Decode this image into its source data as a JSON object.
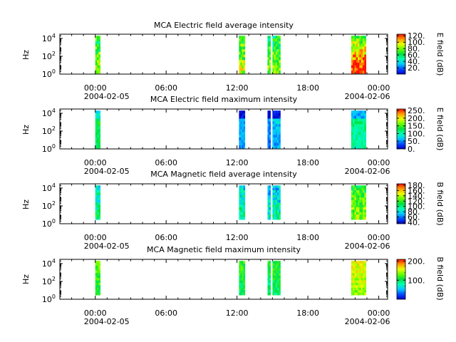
{
  "chart_data": [
    {
      "type": "heatmap",
      "title": "MCA  Electric field average intensity",
      "ylabel": "Hz",
      "colorbar_label": "E field (dB)",
      "colorbar_ticks": [
        "20.",
        "40.",
        "60.",
        "80.",
        "100.",
        "120."
      ],
      "colorbar_range": [
        0,
        125
      ],
      "y_ticks": [
        {
          "exp": "0",
          "value": 1
        },
        {
          "exp": "2",
          "value": 100
        },
        {
          "exp": "4",
          "value": 10000
        }
      ],
      "x_ticks": [
        "00:00",
        "06:00",
        "12:00",
        "18:00",
        "00:00"
      ],
      "x_dates": [
        "2004-02-05",
        "2004-02-06"
      ],
      "x_range": [
        "2004-02-04T21:00",
        "2004-02-06T00:45"
      ],
      "y_range": [
        1,
        30000
      ],
      "y_scale": "log",
      "data_blocks": [
        {
          "start": "00:00",
          "end": "00:25",
          "level": 75
        },
        {
          "start": "12:10",
          "end": "12:40",
          "level": 78
        },
        {
          "start": "14:35",
          "end": "14:50",
          "level": 72
        },
        {
          "start": "15:00",
          "end": "15:40",
          "level": 70
        },
        {
          "start": "21:40",
          "end": "22:55",
          "level": 88
        }
      ]
    },
    {
      "type": "heatmap",
      "title": "MCA  Electric field maximum intensity",
      "ylabel": "Hz",
      "colorbar_label": "E field (dB)",
      "colorbar_ticks": [
        "0.",
        "50.",
        "100.",
        "150.",
        "200.",
        "250."
      ],
      "colorbar_range": [
        0,
        260
      ],
      "y_ticks": [
        {
          "exp": "0",
          "value": 1
        },
        {
          "exp": "2",
          "value": 100
        },
        {
          "exp": "4",
          "value": 10000
        }
      ],
      "x_ticks": [
        "00:00",
        "06:00",
        "12:00",
        "18:00",
        "00:00"
      ],
      "x_dates": [
        "2004-02-05",
        "2004-02-06"
      ],
      "x_range": [
        "2004-02-04T21:00",
        "2004-02-06T00:45"
      ],
      "y_range": [
        1,
        30000
      ],
      "y_scale": "log",
      "data_blocks": [
        {
          "start": "00:00",
          "end": "00:25",
          "level": 130
        },
        {
          "start": "12:10",
          "end": "12:40",
          "level": 60
        },
        {
          "start": "14:35",
          "end": "14:50",
          "level": 50
        },
        {
          "start": "15:00",
          "end": "15:40",
          "level": 65
        },
        {
          "start": "21:40",
          "end": "22:55",
          "level": 110
        }
      ]
    },
    {
      "type": "heatmap",
      "title": "MCA  Magnetic field average intensity",
      "ylabel": "Hz",
      "colorbar_label": "B field (dB)",
      "colorbar_ticks": [
        "40.",
        "60.",
        "80.",
        "100.",
        "120.",
        "140.",
        "160.",
        "180."
      ],
      "colorbar_range": [
        35,
        185
      ],
      "y_ticks": [
        {
          "exp": "0",
          "value": 1
        },
        {
          "exp": "2",
          "value": 100
        },
        {
          "exp": "4",
          "value": 10000
        }
      ],
      "x_ticks": [
        "00:00",
        "06:00",
        "12:00",
        "18:00",
        "00:00"
      ],
      "x_dates": [
        "2004-02-05",
        "2004-02-06"
      ],
      "x_range": [
        "2004-02-04T21:00",
        "2004-02-06T00:45"
      ],
      "y_range": [
        1,
        30000
      ],
      "y_scale": "log",
      "data_blocks": [
        {
          "start": "00:00",
          "end": "00:25",
          "level": 95
        },
        {
          "start": "12:10",
          "end": "12:40",
          "level": 90
        },
        {
          "start": "14:35",
          "end": "14:50",
          "level": 80
        },
        {
          "start": "15:00",
          "end": "15:40",
          "level": 85
        },
        {
          "start": "21:40",
          "end": "22:55",
          "level": 125
        }
      ]
    },
    {
      "type": "heatmap",
      "title": "MCA  Magnetic field maximum intensity",
      "ylabel": "Hz",
      "colorbar_label": "B field (dB)",
      "colorbar_ticks": [
        "100.",
        "200."
      ],
      "colorbar_range": [
        0,
        210
      ],
      "y_ticks": [
        {
          "exp": "0",
          "value": 1
        },
        {
          "exp": "2",
          "value": 100
        },
        {
          "exp": "4",
          "value": 10000
        }
      ],
      "x_ticks": [
        "00:00",
        "06:00",
        "12:00",
        "18:00",
        "00:00"
      ],
      "x_dates": [
        "2004-02-05",
        "2004-02-06"
      ],
      "x_range": [
        "2004-02-04T21:00",
        "2004-02-06T00:45"
      ],
      "y_range": [
        1,
        30000
      ],
      "y_scale": "log",
      "data_blocks": [
        {
          "start": "00:00",
          "end": "00:25",
          "level": 120
        },
        {
          "start": "12:10",
          "end": "12:40",
          "level": 110
        },
        {
          "start": "14:35",
          "end": "14:50",
          "level": 100
        },
        {
          "start": "15:00",
          "end": "15:40",
          "level": 105
        },
        {
          "start": "21:40",
          "end": "22:55",
          "level": 150
        }
      ]
    }
  ]
}
